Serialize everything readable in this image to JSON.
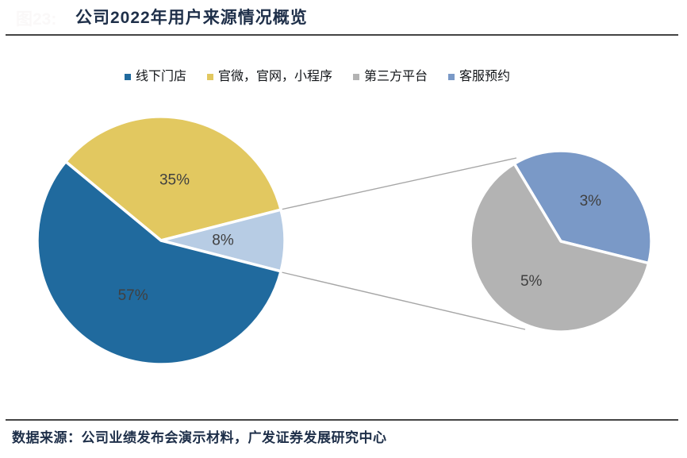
{
  "page": {
    "watermark_prefix": "图23:",
    "title": "公司2022年用户来源情况概览",
    "source_note": "数据来源：公司业绩发布会演示材料，广发证券发展研究中心"
  },
  "colors": {
    "title_navy": "#1E2F49",
    "rule_gray": "#444444",
    "percent_label_gray": "#404040",
    "connector_gray": "#A6A6A6",
    "slice_stroke_white": "#FFFFFF"
  },
  "legend": [
    {
      "id": "offline-stores",
      "label": "线下门店",
      "color": "#206A9E"
    },
    {
      "id": "official-channels",
      "label": "官微，官网，小程序",
      "color": "#E2C860"
    },
    {
      "id": "third-party-platform",
      "label": "第三方平台",
      "color": "#B3B3B3"
    },
    {
      "id": "customer-service-booking",
      "label": "客服预约",
      "color": "#7A99C7"
    }
  ],
  "chart_data": {
    "type": "pie",
    "subtype": "pie-of-pie",
    "title": "公司2022年用户来源情况概览",
    "legend_position": "top",
    "units": "percent",
    "main_pie": {
      "start_angle_deg": -140.4,
      "slices": [
        {
          "id": "official-channels",
          "name": "官微，官网，小程序",
          "value": 35,
          "label": "35%",
          "color": "#E2C860"
        },
        {
          "id": "combined-breakout",
          "name": "第三方平台+客服预约",
          "value": 8,
          "label": "8%",
          "color": "#B7CCE4"
        },
        {
          "id": "offline-stores",
          "name": "线下门店",
          "value": 57,
          "label": "57%",
          "color": "#206A9E"
        }
      ]
    },
    "secondary_pie": {
      "start_angle_deg": -121,
      "slices": [
        {
          "id": "customer-service-booking",
          "name": "客服预约",
          "value": 3,
          "label": "3%",
          "color": "#7A99C7"
        },
        {
          "id": "third-party-platform",
          "name": "第三方平台",
          "value": 5,
          "label": "5%",
          "color": "#B3B3B3"
        }
      ]
    }
  }
}
